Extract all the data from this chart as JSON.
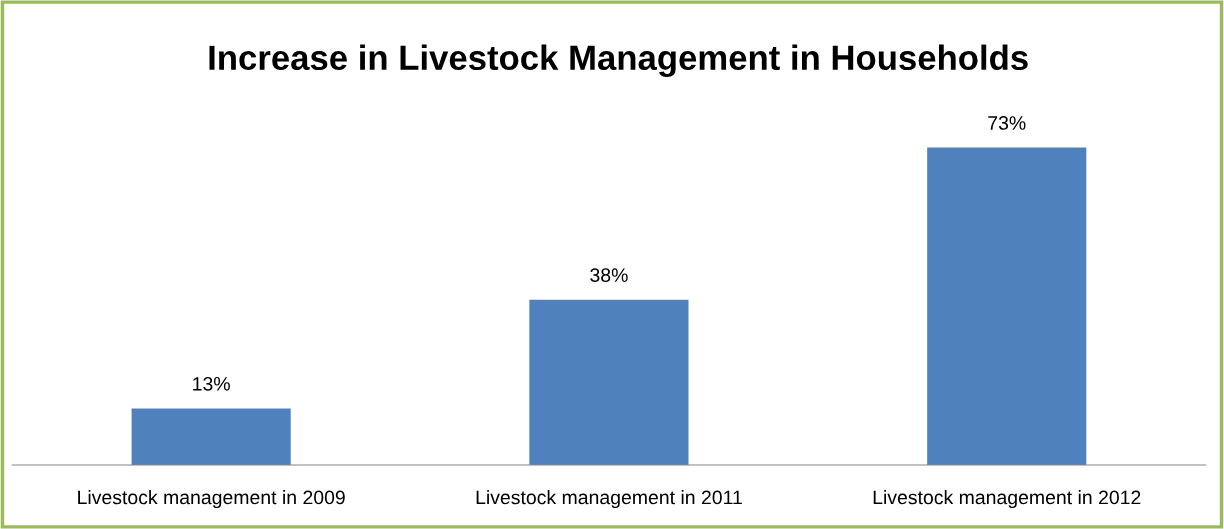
{
  "chart_data": {
    "type": "bar",
    "title": "Increase in Livestock Management in Households",
    "categories": [
      "Livestock management in 2009",
      "Livestock management in 2011",
      "Livestock management in 2012"
    ],
    "values": [
      13,
      38,
      73
    ],
    "value_labels": [
      "13%",
      "38%",
      "73%"
    ],
    "color": "#4f81bd",
    "grid": false,
    "legend": false
  }
}
